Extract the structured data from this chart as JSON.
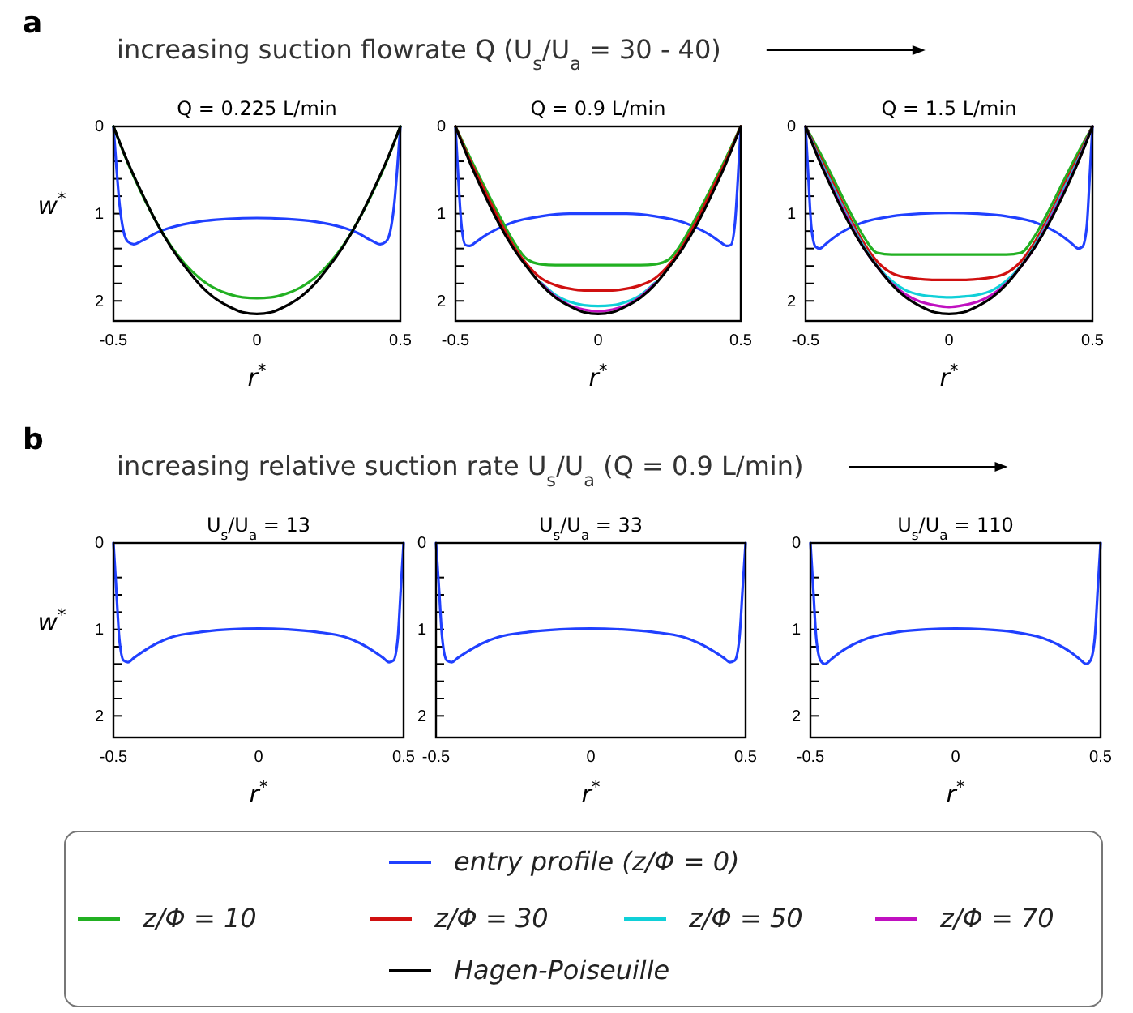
{
  "chart_data": [
    {
      "type": "line",
      "title": "Q = 0.225 L/min",
      "xlabel": "r$^{*}$",
      "ylabel": "w$^{*}$",
      "annotations": [
        "a",
        "increasing suction flowrate Q (U$_{s}$/U$_{a}$ = 30 - 40)"
      ],
      "xlim": [
        -0.5,
        0.5
      ],
      "xticks": [
        -0.5,
        0,
        0.5
      ],
      "ylim": [
        2.23,
        0
      ],
      "yticks": [
        0,
        {
          "value": 0.4,
          "label": null
        },
        {
          "value": 0.6,
          "label": null
        },
        {
          "value": 0.8,
          "label": null
        },
        1,
        {
          "value": 1.2,
          "label": null
        },
        {
          "value": 1.4,
          "label": null
        },
        {
          "value": 1.6,
          "label": null
        },
        {
          "value": 1.8,
          "label": null
        },
        2
      ],
      "line_style": "solid",
      "marker": "none",
      "x": [
        -0.5,
        -0.45,
        -0.4,
        -0.35,
        -0.3,
        -0.25,
        -0.2,
        -0.15,
        -0.1,
        -0.05,
        0,
        0.05,
        0.1,
        0.15,
        0.2,
        0.25,
        0.3,
        0.35,
        0.4,
        0.45,
        0.5
      ],
      "series": [
        {
          "color": "#2040ff",
          "x": [
            -0.5,
            -0.49,
            -0.48,
            -0.465,
            -0.45,
            -0.43,
            -0.4,
            -0.35,
            -0.3,
            -0.2,
            -0.1,
            0,
            0.1,
            0.2,
            0.3,
            0.35,
            0.4,
            0.43,
            0.45,
            0.465,
            0.48,
            0.49,
            0.5
          ],
          "values": [
            0,
            0.45,
            0.85,
            1.2,
            1.32,
            1.35,
            1.31,
            1.22,
            1.16,
            1.09,
            1.06,
            1.05,
            1.06,
            1.09,
            1.16,
            1.22,
            1.31,
            1.35,
            1.32,
            1.2,
            0.85,
            0.45,
            0
          ]
        },
        {
          "color": "#22b022",
          "values": [
            0,
            0.42,
            0.78,
            1.1,
            1.37,
            1.58,
            1.74,
            1.85,
            1.92,
            1.96,
            1.97,
            1.96,
            1.92,
            1.85,
            1.74,
            1.58,
            1.37,
            1.1,
            0.78,
            0.42,
            0
          ]
        },
        {
          "color": "#000000",
          "values": [
            0,
            0.41,
            0.77,
            1.1,
            1.38,
            1.61,
            1.81,
            1.96,
            2.06,
            2.13,
            2.15,
            2.13,
            2.06,
            1.96,
            1.81,
            1.61,
            1.38,
            1.1,
            0.77,
            0.41,
            0
          ]
        }
      ]
    },
    {
      "type": "line",
      "title": "Q = 0.9 L/min",
      "xlabel": "r$^{*}$",
      "xlim": [
        -0.5,
        0.5
      ],
      "xticks": [
        -0.5,
        0,
        0.5
      ],
      "ylim": [
        2.23,
        0
      ],
      "yticks": [
        0,
        {
          "value": 0.4,
          "label": null
        },
        {
          "value": 0.6,
          "label": null
        },
        {
          "value": 0.8,
          "label": null
        },
        1,
        {
          "value": 1.2,
          "label": null
        },
        {
          "value": 1.4,
          "label": null
        },
        {
          "value": 1.6,
          "label": null
        },
        {
          "value": 1.8,
          "label": null
        },
        2
      ],
      "line_style": "solid",
      "marker": "none",
      "x": [
        -0.5,
        -0.45,
        -0.4,
        -0.35,
        -0.3,
        -0.25,
        -0.2,
        -0.15,
        -0.1,
        -0.05,
        0,
        0.05,
        0.1,
        0.15,
        0.2,
        0.25,
        0.3,
        0.35,
        0.4,
        0.45,
        0.5
      ],
      "series": [
        {
          "color": "#2040ff",
          "x": [
            -0.5,
            -0.49,
            -0.48,
            -0.465,
            -0.45,
            -0.43,
            -0.4,
            -0.35,
            -0.3,
            -0.2,
            -0.1,
            0,
            0.1,
            0.2,
            0.3,
            0.35,
            0.4,
            0.43,
            0.45,
            0.465,
            0.48,
            0.49,
            0.5
          ],
          "values": [
            0,
            0.6,
            1.1,
            1.36,
            1.37,
            1.33,
            1.26,
            1.17,
            1.1,
            1.03,
            1.0,
            1.0,
            1.0,
            1.03,
            1.1,
            1.17,
            1.26,
            1.33,
            1.37,
            1.36,
            1.1,
            0.6,
            0
          ]
        },
        {
          "color": "#22b022",
          "values": [
            0,
            0.35,
            0.68,
            1.0,
            1.3,
            1.52,
            1.58,
            1.59,
            1.59,
            1.59,
            1.59,
            1.59,
            1.59,
            1.59,
            1.58,
            1.52,
            1.3,
            1.0,
            0.68,
            0.35,
            0
          ]
        },
        {
          "color": "#d01010",
          "values": [
            0,
            0.38,
            0.72,
            1.05,
            1.35,
            1.58,
            1.74,
            1.82,
            1.86,
            1.88,
            1.88,
            1.88,
            1.86,
            1.82,
            1.74,
            1.58,
            1.35,
            1.05,
            0.72,
            0.38,
            0
          ]
        },
        {
          "color": "#10d0d8",
          "values": [
            null,
            null,
            null,
            null,
            null,
            null,
            1.79,
            1.93,
            2.01,
            2.05,
            2.06,
            2.05,
            2.01,
            1.93,
            1.79,
            null,
            null,
            null,
            null,
            null,
            null
          ]
        },
        {
          "color": "#c010c0",
          "values": [
            null,
            null,
            null,
            null,
            null,
            null,
            1.8,
            1.95,
            2.05,
            2.1,
            2.12,
            2.1,
            2.05,
            1.95,
            1.8,
            null,
            null,
            null,
            null,
            null,
            null
          ]
        },
        {
          "color": "#000000",
          "values": [
            0,
            0.41,
            0.77,
            1.1,
            1.38,
            1.61,
            1.81,
            1.96,
            2.06,
            2.13,
            2.15,
            2.13,
            2.06,
            1.96,
            1.81,
            1.61,
            1.38,
            1.1,
            0.77,
            0.41,
            0
          ]
        }
      ]
    },
    {
      "type": "line",
      "title": "Q = 1.5 L/min",
      "xlabel": "r$^{*}$",
      "xlim": [
        -0.5,
        0.5
      ],
      "xticks": [
        -0.5,
        0,
        0.5
      ],
      "ylim": [
        2.23,
        0
      ],
      "yticks": [
        0,
        {
          "value": 0.4,
          "label": null
        },
        {
          "value": 0.6,
          "label": null
        },
        {
          "value": 0.8,
          "label": null
        },
        1,
        {
          "value": 1.2,
          "label": null
        },
        {
          "value": 1.4,
          "label": null
        },
        {
          "value": 1.6,
          "label": null
        },
        {
          "value": 1.8,
          "label": null
        },
        2
      ],
      "line_style": "solid",
      "marker": "none",
      "legend": "bottom",
      "x": [
        -0.5,
        -0.45,
        -0.4,
        -0.35,
        -0.3,
        -0.25,
        -0.2,
        -0.15,
        -0.1,
        -0.05,
        0,
        0.05,
        0.1,
        0.15,
        0.2,
        0.25,
        0.3,
        0.35,
        0.4,
        0.45,
        0.5
      ],
      "series": [
        {
          "name": "entry profile (z/Φ = 0)",
          "color": "#2040ff",
          "x": [
            -0.5,
            -0.49,
            -0.48,
            -0.465,
            -0.45,
            -0.43,
            -0.4,
            -0.35,
            -0.3,
            -0.2,
            -0.1,
            0,
            0.1,
            0.2,
            0.3,
            0.35,
            0.4,
            0.43,
            0.45,
            0.465,
            0.48,
            0.49,
            0.5
          ],
          "values": [
            0,
            0.6,
            1.15,
            1.38,
            1.4,
            1.35,
            1.27,
            1.17,
            1.1,
            1.03,
            1.0,
            0.99,
            1.0,
            1.03,
            1.1,
            1.17,
            1.27,
            1.35,
            1.4,
            1.38,
            1.15,
            0.6,
            0
          ]
        },
        {
          "name": "z/Φ = 10",
          "color": "#22b022",
          "values": [
            0,
            0.3,
            0.62,
            0.95,
            1.25,
            1.45,
            1.47,
            1.47,
            1.47,
            1.47,
            1.47,
            1.47,
            1.47,
            1.47,
            1.47,
            1.45,
            1.25,
            0.95,
            0.62,
            0.3,
            0
          ]
        },
        {
          "name": "z/Φ = 30",
          "color": "#d01010",
          "values": [
            0,
            0.35,
            0.68,
            1.02,
            1.32,
            1.55,
            1.68,
            1.73,
            1.75,
            1.76,
            1.76,
            1.76,
            1.75,
            1.73,
            1.68,
            1.55,
            1.32,
            1.02,
            0.68,
            0.35,
            0
          ]
        },
        {
          "name": "z/Φ = 50",
          "color": "#10d0d8",
          "values": [
            0,
            0.38,
            0.72,
            1.06,
            1.36,
            1.6,
            1.77,
            1.88,
            1.93,
            1.95,
            1.96,
            1.95,
            1.93,
            1.88,
            1.77,
            1.6,
            1.36,
            1.06,
            0.72,
            0.38,
            0
          ]
        },
        {
          "name": "z/Φ = 70",
          "color": "#c010c0",
          "values": [
            0,
            0.4,
            0.75,
            1.08,
            1.38,
            1.61,
            1.8,
            1.93,
            2.01,
            2.05,
            2.07,
            2.05,
            2.01,
            1.93,
            1.8,
            1.61,
            1.38,
            1.08,
            0.75,
            0.4,
            0
          ]
        },
        {
          "name": "Hagen-Poiseuille",
          "color": "#000000",
          "values": [
            0,
            0.41,
            0.77,
            1.1,
            1.38,
            1.61,
            1.81,
            1.96,
            2.06,
            2.13,
            2.15,
            2.13,
            2.06,
            1.96,
            1.81,
            1.61,
            1.38,
            1.1,
            0.77,
            0.41,
            0
          ]
        }
      ]
    },
    {
      "type": "line",
      "title": "U$_{s}$/U$_{a}$ = 13",
      "xlabel": "r$^{*}$",
      "ylabel": "w$^{*}$",
      "annotations": [
        "b",
        "increasing relative suction rate U$_{s}$/U$_{a}$ (Q = 0.9 L/min)"
      ],
      "xlim": [
        -0.5,
        0.5
      ],
      "xticks": [
        -0.5,
        0,
        0.5
      ],
      "ylim": [
        2.25,
        0
      ],
      "yticks": [
        0,
        {
          "value": 0.4,
          "label": null
        },
        {
          "value": 0.6,
          "label": null
        },
        {
          "value": 0.8,
          "label": null
        },
        1,
        {
          "value": 1.2,
          "label": null
        },
        {
          "value": 1.4,
          "label": null
        },
        {
          "value": 1.6,
          "label": null
        },
        {
          "value": 1.8,
          "label": null
        },
        2
      ],
      "line_style": "solid",
      "marker": "none",
      "x": [
        -0.5,
        -0.49,
        -0.48,
        -0.465,
        -0.45,
        -0.43,
        -0.4,
        -0.35,
        -0.3,
        -0.2,
        -0.1,
        0,
        0.1,
        0.2,
        0.3,
        0.35,
        0.4,
        0.43,
        0.45,
        0.465,
        0.48,
        0.49,
        0.5
      ],
      "series": [
        {
          "color": "#2040ff",
          "values": [
            0,
            0.55,
            1.1,
            1.36,
            1.38,
            1.33,
            1.26,
            1.16,
            1.09,
            1.03,
            1.0,
            0.99,
            1.0,
            1.03,
            1.09,
            1.16,
            1.26,
            1.33,
            1.38,
            1.36,
            1.1,
            0.55,
            0
          ]
        }
      ]
    },
    {
      "type": "line",
      "title": "U$_{s}$/U$_{a}$ = 33",
      "xlabel": "r$^{*}$",
      "xlim": [
        -0.5,
        0.5
      ],
      "xticks": [
        -0.5,
        0,
        0.5
      ],
      "ylim": [
        2.25,
        0
      ],
      "yticks": [
        0,
        {
          "value": 0.4,
          "label": null
        },
        {
          "value": 0.6,
          "label": null
        },
        {
          "value": 0.8,
          "label": null
        },
        1,
        {
          "value": 1.2,
          "label": null
        },
        {
          "value": 1.4,
          "label": null
        },
        {
          "value": 1.6,
          "label": null
        },
        {
          "value": 1.8,
          "label": null
        },
        2
      ],
      "line_style": "solid",
      "marker": "none",
      "x": [
        -0.5,
        -0.49,
        -0.48,
        -0.465,
        -0.45,
        -0.43,
        -0.4,
        -0.35,
        -0.3,
        -0.2,
        -0.1,
        0,
        0.1,
        0.2,
        0.3,
        0.35,
        0.4,
        0.43,
        0.45,
        0.465,
        0.48,
        0.49,
        0.5
      ],
      "series": [
        {
          "color": "#2040ff",
          "values": [
            0,
            0.55,
            1.1,
            1.36,
            1.38,
            1.33,
            1.26,
            1.16,
            1.09,
            1.03,
            1.0,
            0.99,
            1.0,
            1.03,
            1.09,
            1.16,
            1.26,
            1.33,
            1.38,
            1.36,
            1.1,
            0.55,
            0
          ]
        }
      ]
    },
    {
      "type": "line",
      "title": "U$_{s}$/U$_{a}$ = 110",
      "xlabel": "r$^{*}$",
      "xlim": [
        -0.5,
        0.5
      ],
      "xticks": [
        -0.5,
        0,
        0.5
      ],
      "ylim": [
        2.25,
        0
      ],
      "yticks": [
        0,
        {
          "value": 0.4,
          "label": null
        },
        {
          "value": 0.6,
          "label": null
        },
        {
          "value": 0.8,
          "label": null
        },
        1,
        {
          "value": 1.2,
          "label": null
        },
        {
          "value": 1.4,
          "label": null
        },
        {
          "value": 1.6,
          "label": null
        },
        {
          "value": 1.8,
          "label": null
        },
        2
      ],
      "line_style": "solid",
      "marker": "none",
      "x": [
        -0.5,
        -0.49,
        -0.48,
        -0.465,
        -0.45,
        -0.43,
        -0.4,
        -0.35,
        -0.3,
        -0.2,
        -0.1,
        0,
        0.1,
        0.2,
        0.3,
        0.35,
        0.4,
        0.43,
        0.45,
        0.465,
        0.48,
        0.49,
        0.5
      ],
      "series": [
        {
          "color": "#2040ff",
          "values": [
            0,
            0.55,
            1.1,
            1.36,
            1.4,
            1.35,
            1.27,
            1.17,
            1.1,
            1.03,
            1.0,
            0.99,
            1.0,
            1.03,
            1.1,
            1.17,
            1.27,
            1.35,
            1.4,
            1.36,
            1.1,
            0.55,
            0
          ]
        }
      ]
    }
  ]
}
